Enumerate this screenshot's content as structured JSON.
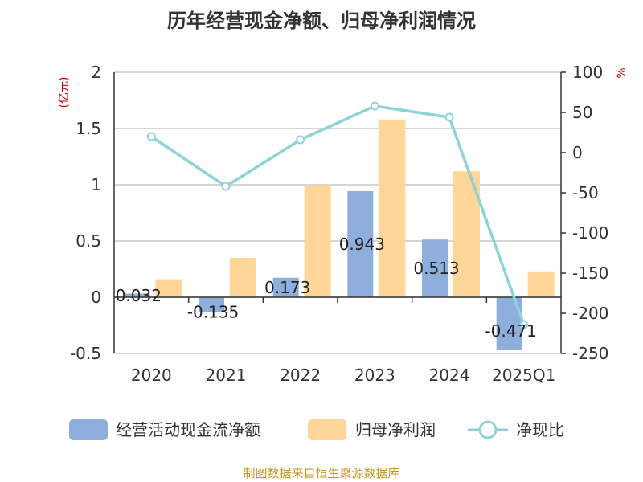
{
  "chart_data": {
    "type": "bar",
    "title": "历年经营现金净额、归母净利润情况",
    "categories": [
      "2020",
      "2021",
      "2022",
      "2023",
      "2024",
      "2025Q1"
    ],
    "series": [
      {
        "name": "经营活动现金流净额",
        "type": "bar",
        "axis": "left",
        "color": "#8eaedb",
        "values": [
          0.032,
          -0.135,
          0.173,
          0.943,
          0.513,
          -0.471
        ]
      },
      {
        "name": "归母净利润",
        "type": "bar",
        "axis": "left",
        "color": "#ffd698",
        "values": [
          0.16,
          0.35,
          1.0,
          1.58,
          1.12,
          0.23
        ]
      },
      {
        "name": "净现比",
        "type": "line",
        "axis": "right",
        "color": "#8dd3d8",
        "values": [
          20,
          -42,
          16,
          58,
          44,
          -214
        ]
      }
    ],
    "data_labels": [
      "0.032",
      "-0.135",
      "0.173",
      "0.943",
      "0.513",
      "-0.471"
    ],
    "y_left": {
      "label": "(亿元)",
      "min": -0.5,
      "max": 2,
      "ticks": [
        "2",
        "1.5",
        "1",
        "0.5",
        "0",
        "-0.5"
      ],
      "tick_values": [
        2,
        1.5,
        1,
        0.5,
        0,
        -0.5
      ]
    },
    "y_right": {
      "label": "%",
      "min": -250,
      "max": 100,
      "ticks": [
        "100",
        "50",
        "0",
        "-50",
        "-100",
        "-150",
        "-200",
        "-250"
      ],
      "tick_values": [
        100,
        50,
        0,
        -50,
        -100,
        -150,
        -200,
        -250
      ]
    },
    "grid": true,
    "legend_position": "bottom"
  },
  "source": "制图数据来自恒生聚源数据库"
}
